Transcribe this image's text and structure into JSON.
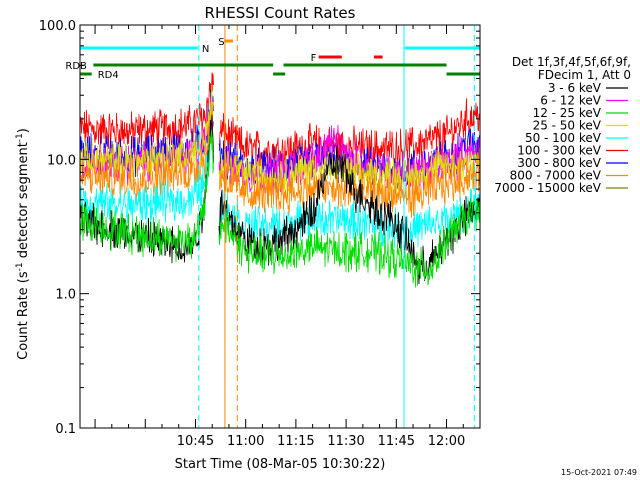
{
  "chart_data": {
    "type": "line",
    "title": "RHESSI Count Rates",
    "xlabel": "Start Time (08-Mar-05 10:30:22)",
    "ylabel_parts": [
      "Count Rate (s",
      "-1",
      " detector segment",
      "-1",
      ")"
    ],
    "y_scale": "log",
    "ylim": [
      0.1,
      100.0
    ],
    "y_ticks": [
      {
        "value": 0.1,
        "label": "0.1"
      },
      {
        "value": 1.0,
        "label": "1.0"
      },
      {
        "value": 10.0,
        "label": "10.0"
      },
      {
        "value": 100.0,
        "label": "100.0"
      }
    ],
    "xlim_minutes": [
      10.5,
      130.0
    ],
    "x_ticks": [
      {
        "minute": 45,
        "label": "10:45"
      },
      {
        "minute": 60,
        "label": "11:00"
      },
      {
        "minute": 75,
        "label": "11:15"
      },
      {
        "minute": 90,
        "label": "11:30"
      },
      {
        "minute": 105,
        "label": "11:45"
      },
      {
        "minute": 120,
        "label": "12:00"
      }
    ],
    "legend": {
      "placement": "right",
      "header": [
        "Det 1f,3f,4f,5f,6f,9f,",
        "FDecim 1, Att 0"
      ],
      "entries": [
        {
          "label": "3 - 6 keV",
          "color": "#000000"
        },
        {
          "label": "6 - 12 keV",
          "color": "#ff00ff"
        },
        {
          "label": "12 - 25 keV",
          "color": "#00dd00"
        },
        {
          "label": "25 - 50 keV",
          "color": "#dddd00"
        },
        {
          "label": "50 - 100 keV",
          "color": "#00ffff"
        },
        {
          "label": "100 - 300 keV",
          "color": "#ff0000"
        },
        {
          "label": "300 - 800 keV",
          "color": "#0000ff"
        },
        {
          "label": "800 - 7000 keV",
          "color": "#ff8800"
        },
        {
          "label": "7000 - 15000 keV",
          "color": "#808000"
        }
      ]
    },
    "series": [
      {
        "color": "#ff0000",
        "base": [
          [
            10.5,
            17
          ],
          [
            25,
            16
          ],
          [
            44,
            18
          ],
          [
            48,
            22
          ],
          [
            50,
            40
          ],
          [
            51.5,
            14
          ],
          [
            53,
            16
          ],
          [
            60,
            12
          ],
          [
            70,
            11.5
          ],
          [
            75,
            12
          ],
          [
            80,
            13
          ],
          [
            90,
            12.5
          ],
          [
            100,
            12
          ],
          [
            105,
            12
          ],
          [
            110,
            12.5
          ],
          [
            120,
            15
          ],
          [
            126,
            20
          ],
          [
            130,
            22
          ]
        ]
      },
      {
        "color": "#0000ff",
        "base": [
          [
            10.5,
            11
          ],
          [
            25,
            10.5
          ],
          [
            44,
            12
          ],
          [
            48,
            15
          ],
          [
            50,
            30
          ],
          [
            51.5,
            9
          ],
          [
            53,
            11
          ],
          [
            60,
            8.5
          ],
          [
            70,
            8.5
          ],
          [
            80,
            10
          ],
          [
            90,
            9
          ],
          [
            100,
            8.5
          ],
          [
            105,
            8
          ],
          [
            110,
            8.5
          ],
          [
            120,
            10
          ],
          [
            126,
            12.5
          ],
          [
            130,
            13
          ]
        ]
      },
      {
        "color": "#ff00ff",
        "base": [
          [
            10.5,
            9.5
          ],
          [
            25,
            9
          ],
          [
            44,
            10.5
          ],
          [
            48,
            13
          ],
          [
            50,
            28
          ],
          [
            51.5,
            8
          ],
          [
            53,
            9.5
          ],
          [
            60,
            7.5
          ],
          [
            70,
            8
          ],
          [
            78,
            9
          ],
          [
            82,
            11
          ],
          [
            86,
            14
          ],
          [
            90,
            10
          ],
          [
            100,
            8.5
          ],
          [
            105,
            8
          ],
          [
            110,
            8
          ],
          [
            120,
            9.5
          ],
          [
            126,
            11
          ],
          [
            130,
            11.5
          ]
        ]
      },
      {
        "color": "#dddd00",
        "base": [
          [
            10.5,
            10
          ],
          [
            25,
            9.5
          ],
          [
            44,
            11
          ],
          [
            48,
            13
          ],
          [
            50,
            26
          ],
          [
            51.5,
            8
          ],
          [
            53,
            10
          ],
          [
            60,
            7.5
          ],
          [
            70,
            7.5
          ],
          [
            80,
            8.5
          ],
          [
            90,
            8
          ],
          [
            100,
            7.5
          ],
          [
            110,
            7.5
          ],
          [
            120,
            9
          ],
          [
            130,
            10
          ]
        ]
      },
      {
        "color": "#ff8800",
        "base": [
          [
            10.5,
            7.5
          ],
          [
            25,
            7
          ],
          [
            44,
            8
          ],
          [
            48,
            10
          ],
          [
            50,
            20
          ],
          [
            51.5,
            6
          ],
          [
            53,
            7.5
          ],
          [
            60,
            5.5
          ],
          [
            70,
            5.5
          ],
          [
            80,
            6
          ],
          [
            90,
            5.8
          ],
          [
            100,
            5.5
          ],
          [
            110,
            5.2
          ],
          [
            120,
            6.5
          ],
          [
            130,
            8
          ]
        ]
      },
      {
        "color": "#00ffff",
        "base": [
          [
            10.5,
            4.8
          ],
          [
            25,
            4.5
          ],
          [
            44,
            5
          ],
          [
            48,
            7
          ],
          [
            50,
            16
          ],
          [
            51.5,
            3
          ],
          [
            53,
            4.5
          ],
          [
            60,
            3.2
          ],
          [
            70,
            3.2
          ],
          [
            80,
            3.6
          ],
          [
            90,
            3.5
          ],
          [
            100,
            3.2
          ],
          [
            110,
            3
          ],
          [
            120,
            3.5
          ],
          [
            130,
            4.5
          ]
        ]
      },
      {
        "color": "#000000",
        "base": [
          [
            10.5,
            3.5
          ],
          [
            20,
            3
          ],
          [
            30,
            2.6
          ],
          [
            40,
            2.2
          ],
          [
            44,
            2.3
          ],
          [
            47,
            3.5
          ],
          [
            50,
            22
          ],
          [
            51.5,
            2.5
          ],
          [
            53,
            5
          ],
          [
            55,
            3.5
          ],
          [
            60,
            2.5
          ],
          [
            65,
            2.3
          ],
          [
            70,
            2.4
          ],
          [
            75,
            3
          ],
          [
            80,
            4
          ],
          [
            84,
            8
          ],
          [
            88,
            9.5
          ],
          [
            92,
            6
          ],
          [
            96,
            5
          ],
          [
            100,
            4
          ],
          [
            104,
            3.5
          ],
          [
            108,
            2.5
          ],
          [
            112,
            1.5
          ],
          [
            116,
            1.8
          ],
          [
            120,
            2.5
          ],
          [
            125,
            3.5
          ],
          [
            130,
            4.8
          ]
        ]
      },
      {
        "color": "#00dd00",
        "base": [
          [
            10.5,
            3.5
          ],
          [
            20,
            3
          ],
          [
            30,
            2.7
          ],
          [
            40,
            2.5
          ],
          [
            44,
            2.6
          ],
          [
            47,
            3.5
          ],
          [
            50,
            15
          ],
          [
            51.5,
            2
          ],
          [
            53,
            3.5
          ],
          [
            60,
            2
          ],
          [
            70,
            1.9
          ],
          [
            80,
            2.2
          ],
          [
            90,
            2.1
          ],
          [
            100,
            2
          ],
          [
            110,
            1.6
          ],
          [
            115,
            1.5
          ],
          [
            120,
            2.5
          ],
          [
            125,
            3.5
          ],
          [
            130,
            4.5
          ]
        ]
      }
    ],
    "flag_bars": [
      {
        "label": "S",
        "color": "#ff8800",
        "segments": [
          [
            53.6,
            56.2
          ]
        ],
        "row": "S"
      },
      {
        "label": "N",
        "color": "#00ffff",
        "segments": [
          [
            10.5,
            45.7
          ],
          [
            107.5,
            130
          ]
        ],
        "row": "N"
      },
      {
        "label": "F",
        "color": "#ff0000",
        "segments": [
          [
            81.8,
            88.7
          ],
          [
            98.3,
            100.9
          ]
        ],
        "row": "F"
      },
      {
        "label": "RDB",
        "color": "#008000",
        "segments": [
          [
            14.5,
            68.2
          ],
          [
            71.3,
            120.0
          ]
        ],
        "row": "RDB"
      },
      {
        "label": "RD4",
        "color": "#008000",
        "segments": [
          [
            10.5,
            14.0
          ],
          [
            68.2,
            71.8
          ],
          [
            120.0,
            130
          ]
        ],
        "row": "RD4"
      }
    ],
    "vertical_lines": [
      {
        "minute": 10.5,
        "color": "#00ffff",
        "style": "solid"
      },
      {
        "minute": 46.0,
        "color": "#00ffff",
        "style": "dashed"
      },
      {
        "minute": 107.3,
        "color": "#00ffff",
        "style": "solid"
      },
      {
        "minute": 128.3,
        "color": "#00ffff",
        "style": "dashed"
      },
      {
        "minute": 53.8,
        "color": "#ff8800",
        "style": "solid"
      },
      {
        "minute": 57.5,
        "color": "#ff8800",
        "style": "dashed"
      }
    ],
    "footer_timestamp": "15-Oct-2021 07:49"
  }
}
